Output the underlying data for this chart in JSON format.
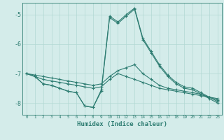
{
  "xlabel": "Humidex (Indice chaleur)",
  "background_color": "#d4ecea",
  "grid_color": "#b2d8d4",
  "line_color": "#2e7d72",
  "xlim": [
    -0.5,
    23.5
  ],
  "ylim": [
    -8.4,
    -4.6
  ],
  "yticks": [
    -8,
    -7,
    -6,
    -5
  ],
  "xticks": [
    0,
    1,
    2,
    3,
    4,
    5,
    6,
    7,
    8,
    9,
    10,
    11,
    12,
    13,
    14,
    15,
    16,
    17,
    18,
    19,
    20,
    21,
    22,
    23
  ],
  "series1_x": [
    0,
    1,
    2,
    3,
    4,
    5,
    6,
    7,
    8,
    9,
    10,
    11,
    12,
    13,
    14,
    15,
    16,
    17,
    18,
    19,
    20,
    21,
    22,
    23
  ],
  "series1_y": [
    -7.0,
    -7.1,
    -7.2,
    -7.25,
    -7.3,
    -7.35,
    -7.4,
    -7.45,
    -7.5,
    -7.45,
    -7.2,
    -7.0,
    -7.1,
    -7.2,
    -7.3,
    -7.4,
    -7.5,
    -7.55,
    -7.6,
    -7.65,
    -7.7,
    -7.75,
    -7.8,
    -7.85
  ],
  "series2_x": [
    0,
    1,
    2,
    3,
    4,
    5,
    6,
    7,
    8,
    9,
    10,
    11,
    12,
    13,
    14,
    15,
    16,
    17,
    18,
    19,
    20,
    21,
    22,
    23
  ],
  "series2_y": [
    -7.0,
    -7.05,
    -7.1,
    -7.15,
    -7.2,
    -7.25,
    -7.3,
    -7.35,
    -7.4,
    -7.35,
    -7.1,
    -6.9,
    -6.8,
    -6.7,
    -7.0,
    -7.2,
    -7.4,
    -7.5,
    -7.55,
    -7.6,
    -7.65,
    -7.7,
    -7.8,
    -7.9
  ],
  "series3_x": [
    0,
    1,
    2,
    3,
    4,
    5,
    6,
    7,
    8,
    9,
    10,
    11,
    12,
    13,
    14,
    15,
    16,
    17,
    18,
    19,
    20,
    21,
    22,
    23
  ],
  "series3_y": [
    -7.0,
    -7.1,
    -7.35,
    -7.4,
    -7.5,
    -7.6,
    -7.65,
    -8.1,
    -8.15,
    -7.6,
    -5.1,
    -5.3,
    -5.05,
    -4.82,
    -5.85,
    -6.3,
    -6.75,
    -7.1,
    -7.35,
    -7.5,
    -7.55,
    -7.7,
    -7.85,
    -8.0
  ],
  "series4_x": [
    0,
    1,
    2,
    3,
    4,
    5,
    6,
    7,
    8,
    9,
    10,
    11,
    12,
    13,
    14,
    15,
    16,
    17,
    18,
    19,
    20,
    21,
    22,
    23
  ],
  "series4_y": [
    -7.0,
    -7.1,
    -7.35,
    -7.4,
    -7.5,
    -7.6,
    -7.65,
    -8.1,
    -8.15,
    -7.55,
    -5.05,
    -5.25,
    -5.0,
    -4.78,
    -5.8,
    -6.25,
    -6.7,
    -7.05,
    -7.3,
    -7.45,
    -7.5,
    -7.65,
    -7.8,
    -7.95
  ]
}
